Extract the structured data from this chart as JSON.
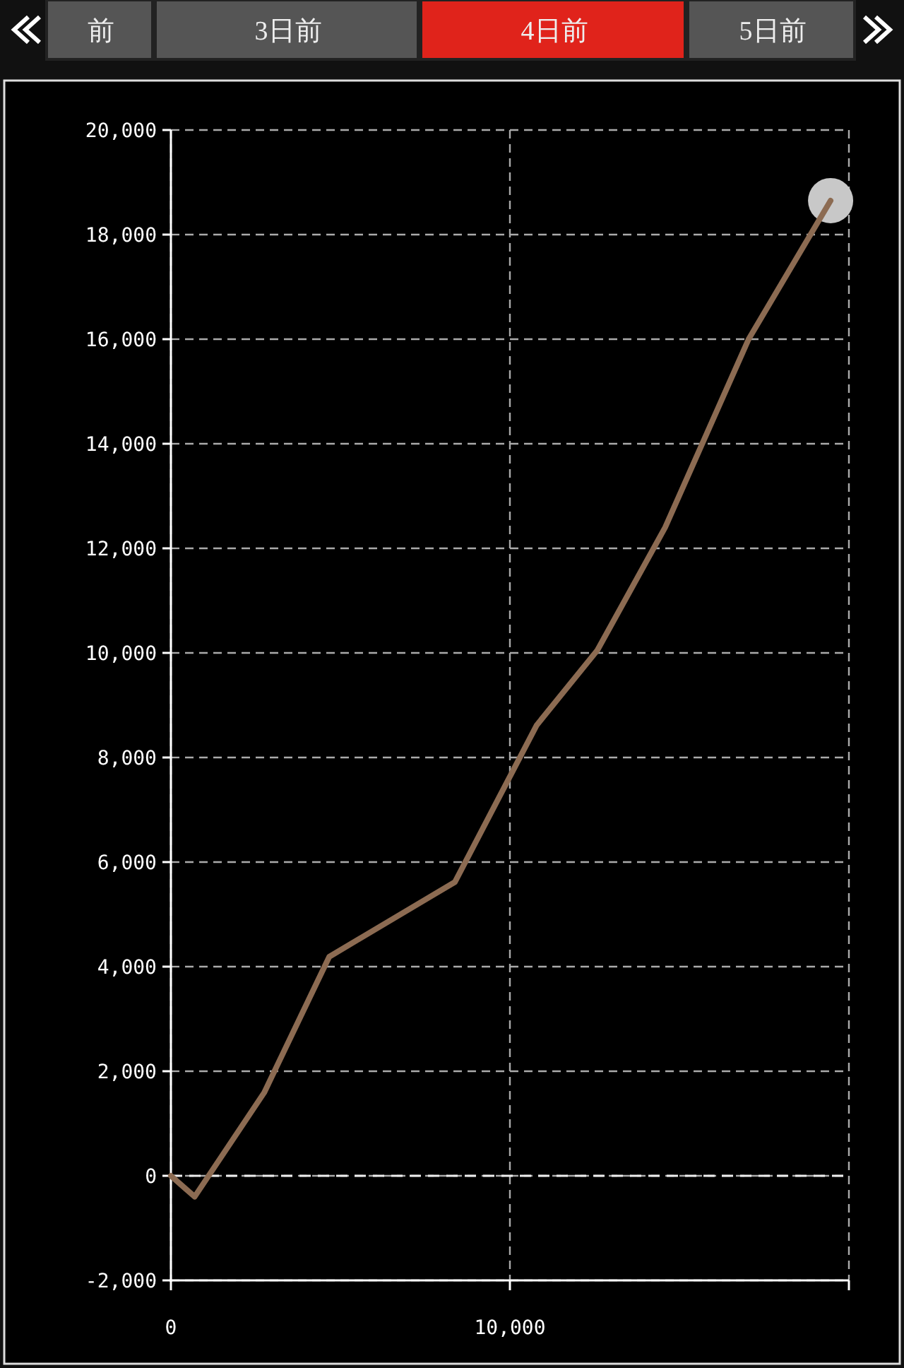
{
  "chart_data": {
    "type": "line",
    "title": "4日前",
    "annotations": [
      "前",
      "3日前",
      "5日前"
    ],
    "x": [
      0,
      700,
      2750,
      4670,
      8380,
      10790,
      12580,
      14580,
      17040,
      19460
    ],
    "series": [
      {
        "color": "#8c6b52",
        "values": [
          0,
          -400,
          1590,
          4190,
          5620,
          8620,
          10050,
          12400,
          16000,
          18650
        ]
      },
      {
        "type": "scatter",
        "color": "#c8c8c8",
        "marker": "circle",
        "x": [
          19460
        ],
        "values": [
          18650
        ]
      }
    ],
    "xlim": [
      0,
      20000
    ],
    "xticks": [
      {
        "value": 0,
        "label": "0"
      },
      {
        "value": 10000,
        "label": "10,000"
      },
      {
        "value": 20000,
        "label": null
      }
    ],
    "ylim": [
      -2000,
      20000
    ],
    "yticks": [
      {
        "value": -2000,
        "label": "-2,000"
      },
      {
        "value": 0,
        "label": "0"
      },
      {
        "value": 2000,
        "label": "2,000"
      },
      {
        "value": 4000,
        "label": "4,000"
      },
      {
        "value": 6000,
        "label": "6,000"
      },
      {
        "value": 8000,
        "label": "8,000"
      },
      {
        "value": 10000,
        "label": "10,000"
      },
      {
        "value": 12000,
        "label": "12,000"
      },
      {
        "value": 14000,
        "label": "14,000"
      },
      {
        "value": 16000,
        "label": "16,000"
      },
      {
        "value": 18000,
        "label": "18,000"
      },
      {
        "value": 20000,
        "label": "20,000"
      }
    ],
    "ref_lines": [
      {
        "axis": "y",
        "value": 0,
        "color": "#eeeeee",
        "line_style": "dashed"
      }
    ],
    "grid": true,
    "line_style": "solid",
    "marker": "none"
  }
}
